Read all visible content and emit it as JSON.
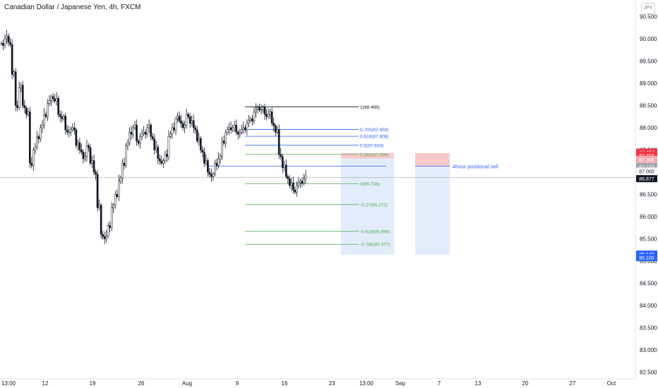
{
  "header": {
    "title": "Canadian Dollar / Japanese Yen, 4h, FXCM",
    "currency": "JPY"
  },
  "chart_data": {
    "type": "candlestick",
    "symbol": "CADJPY",
    "timeframe": "4h",
    "ylim": [
      82.4,
      90.7
    ],
    "y_ticks": [
      "90.500",
      "90.000",
      "89.500",
      "89.000",
      "88.500",
      "88.000",
      "87.500",
      "87.000",
      "86.500",
      "86.000",
      "85.500",
      "85.000",
      "84.500",
      "84.000",
      "83.500",
      "83.000",
      "82.500"
    ],
    "x_ticks": [
      "13:00",
      "12",
      "19",
      "26",
      "Aug",
      "9",
      "16",
      "23",
      "13:00",
      "Sep",
      "7",
      "13",
      "20",
      "27",
      "Oct"
    ],
    "fib_levels": [
      {
        "label": "1(88.469)",
        "value": 88.469
      },
      {
        "label": "0.705(87.959)",
        "value": 87.959
      },
      {
        "label": "0.618(87.808)",
        "value": 87.808
      },
      {
        "label": "0.5(87.604)",
        "value": 87.604
      },
      {
        "label": "0.382(87.399)",
        "value": 87.399
      },
      {
        "label": "0(86.738)",
        "value": 86.738
      },
      {
        "label": "-0.27(86.271)",
        "value": 86.271
      },
      {
        "label": "-0.618(85.668)",
        "value": 85.668
      },
      {
        "label": "-0.786(85.377)",
        "value": 85.377
      }
    ],
    "price_labels": [
      {
        "text": "87.427",
        "value": 87.427,
        "color": "#f23645"
      },
      {
        "text": "87.404",
        "value": 87.404,
        "color": "#f23645"
      },
      {
        "text": "87.306",
        "value": 87.306,
        "color": "#f7a8ad"
      },
      {
        "text": "87.133",
        "value": 87.133,
        "color": "#9fa3ad"
      },
      {
        "text": "87.000",
        "value": 87.0,
        "color": "#ffffff"
      },
      {
        "text": "86.877",
        "value": 86.877,
        "color": "#131722"
      },
      {
        "text": "85.140",
        "value": 85.14,
        "color": "#2962ff"
      },
      {
        "text": "85.100",
        "value": 85.1,
        "color": "#2962ff"
      }
    ],
    "annotation": "4hour postional sell",
    "colors": {
      "candle": "#131722",
      "fib_top": "#131722",
      "fib_blue": "#2962ff",
      "fib_green": "#4caf50",
      "stop_zone": "#f8c9cc",
      "target_zone": "#e3ecfb",
      "annotation": "#2962ff"
    },
    "price_path": [
      89.9,
      90.0,
      89.92,
      89.2,
      88.5,
      88.9,
      88.5,
      88.3,
      87.2,
      87.5,
      87.8,
      88.0,
      88.3,
      88.55,
      88.7,
      88.6,
      88.3,
      88.2,
      87.95,
      87.9,
      88.0,
      87.6,
      87.5,
      87.3,
      87.6,
      87.2,
      87.0,
      86.2,
      85.6,
      85.5,
      85.8,
      86.2,
      86.5,
      86.8,
      87.2,
      87.6,
      87.9,
      88.0,
      87.7,
      87.8,
      87.9,
      88.0,
      87.8,
      87.5,
      87.3,
      87.2,
      87.4,
      87.8,
      88.0,
      88.2,
      88.15,
      88.0,
      88.3,
      88.1,
      88.0,
      87.7,
      87.5,
      87.2,
      87.0,
      86.9,
      87.2,
      87.3,
      87.7,
      87.9,
      88.0,
      88.0,
      87.9,
      87.9,
      88.0,
      88.1,
      88.2,
      88.35,
      88.45,
      88.4,
      88.3,
      88.3,
      88.1,
      87.9,
      87.4,
      87.1,
      86.9,
      86.7,
      86.6,
      86.7,
      86.8,
      86.85
    ]
  }
}
